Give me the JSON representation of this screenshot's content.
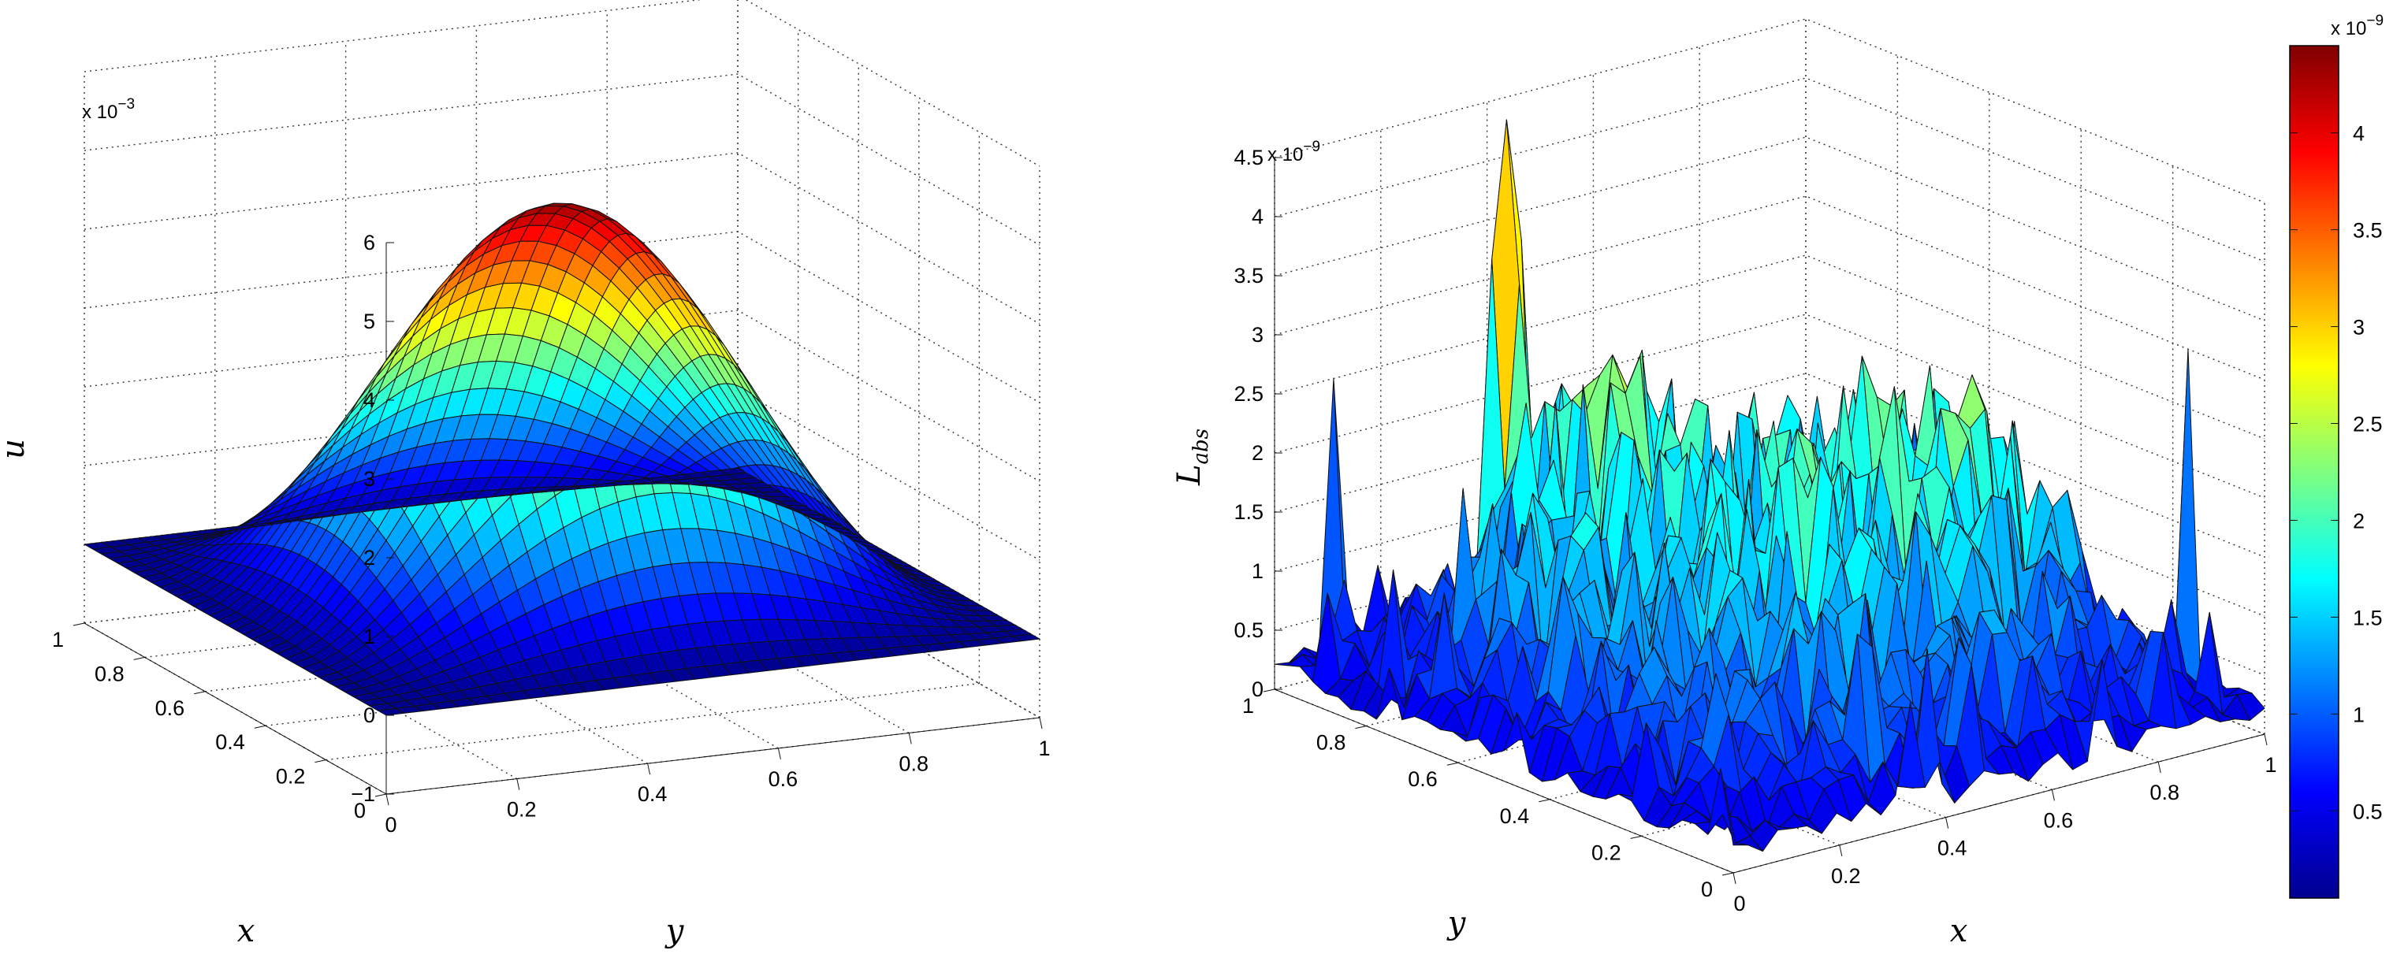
{
  "chart_data": [
    {
      "type": "surface",
      "xlabel": "x",
      "ylabel": "y",
      "zlabel": "u",
      "z_exponent_label": "x 10",
      "z_exponent": "−3",
      "x_ticks": [
        "0",
        "0.2",
        "0.4",
        "0.6",
        "0.8",
        "1"
      ],
      "y_ticks": [
        "0",
        "0.2",
        "0.4",
        "0.6",
        "0.8",
        "1"
      ],
      "z_ticks": [
        "−1",
        "0",
        "1",
        "2",
        "3",
        "4",
        "5",
        "6"
      ],
      "xlim": [
        0,
        1
      ],
      "ylim": [
        0,
        1
      ],
      "zlim": [
        -1,
        6
      ],
      "z_scale": 0.001,
      "peak": {
        "x": 0.5,
        "y": 0.5,
        "z": 4.9
      },
      "grid": true,
      "colormap": "jet"
    },
    {
      "type": "surface",
      "xlabel": "x",
      "ylabel": "y",
      "zlabel": "L",
      "zlabel_sub": "abs",
      "z_exponent_label": "x 10",
      "z_exponent": "−9",
      "x_ticks": [
        "0",
        "0.2",
        "0.4",
        "0.6",
        "0.8",
        "1"
      ],
      "y_ticks": [
        "0",
        "0.2",
        "0.4",
        "0.6",
        "0.8",
        "1"
      ],
      "z_ticks": [
        "0",
        "0.5",
        "1",
        "1.5",
        "2",
        "2.5",
        "3",
        "3.5",
        "4",
        "4.5"
      ],
      "xlim": [
        0,
        1
      ],
      "ylim": [
        0,
        1
      ],
      "zlim": [
        0,
        4.5
      ],
      "z_scale": 1e-09,
      "z_max": 4.45,
      "grid": true,
      "colormap": "jet",
      "colorbar": {
        "exponent_label": "x 10",
        "exponent": "−9",
        "ticks": [
          "0.5",
          "1",
          "1.5",
          "2",
          "2.5",
          "3",
          "3.5",
          "4"
        ],
        "range": [
          0.05,
          4.45
        ]
      }
    }
  ]
}
